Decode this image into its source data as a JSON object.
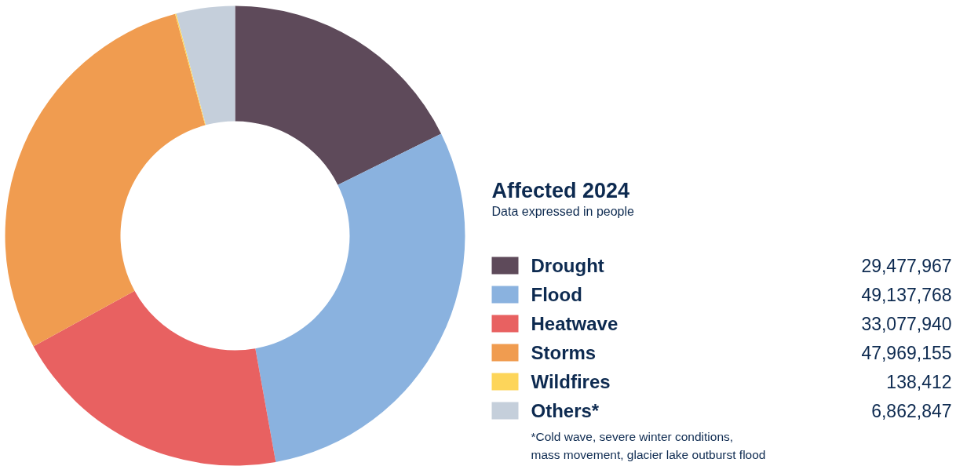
{
  "chart_data": {
    "type": "donut",
    "title": "Affected 2024",
    "subtitle": "Data expressed in people",
    "categories": [
      "Drought",
      "Flood",
      "Heatwave",
      "Storms",
      "Wildfires",
      "Others*"
    ],
    "values": [
      29477967,
      49137768,
      33077940,
      47969155,
      138412,
      6862847
    ],
    "colors": [
      "#5e4a5a",
      "#8ab2df",
      "#e86161",
      "#f09c50",
      "#fdd55a",
      "#c5cfdb"
    ],
    "value_labels": [
      "29,477,967",
      "49,137,768",
      "33,077,940",
      "47,969,155",
      "138,412",
      "6,862,847"
    ],
    "legend": "right",
    "annotations": [
      "*Cold wave, severe winter conditions,\nmass movement, glacier lake outburst flood"
    ]
  }
}
